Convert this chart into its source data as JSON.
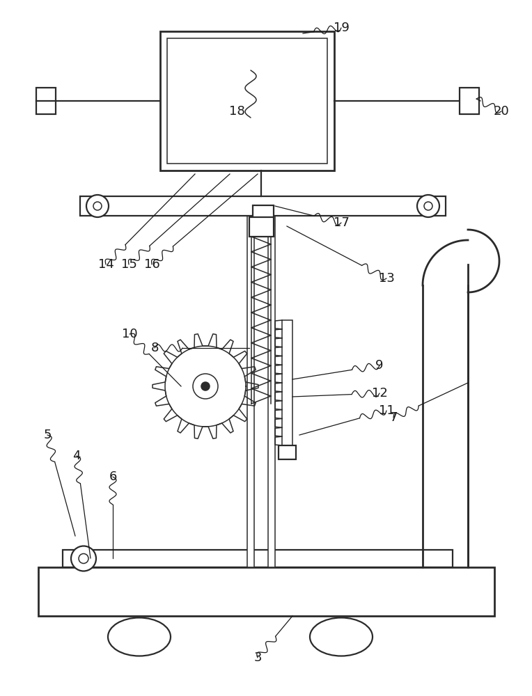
{
  "bg": "#ffffff",
  "lc": "#2a2a2a",
  "lw": 1.6,
  "lw_thin": 1.1,
  "lw_thick": 2.0
}
